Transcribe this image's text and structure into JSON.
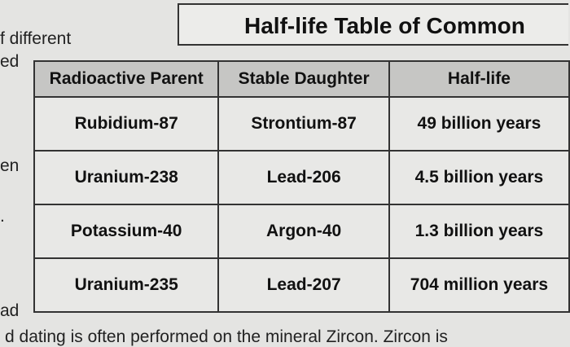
{
  "header": {
    "title": "Half-life Table of Common"
  },
  "margin_text": [
    "f different",
    "ed",
    "en",
    ".",
    "ad"
  ],
  "footer_text": "d dating is often performed on the mineral Zircon. Zircon is",
  "table": {
    "columns": [
      "Radioactive Parent",
      "Stable Daughter",
      "Half-life"
    ],
    "rows": [
      [
        "Rubidium-87",
        "Strontium-87",
        "49 billion years"
      ],
      [
        "Uranium-238",
        "Lead-206",
        "4.5 billion years"
      ],
      [
        "Potassium-40",
        "Argon-40",
        "1.3 billion years"
      ],
      [
        "Uranium-235",
        "Lead-207",
        "704 million years"
      ]
    ]
  }
}
